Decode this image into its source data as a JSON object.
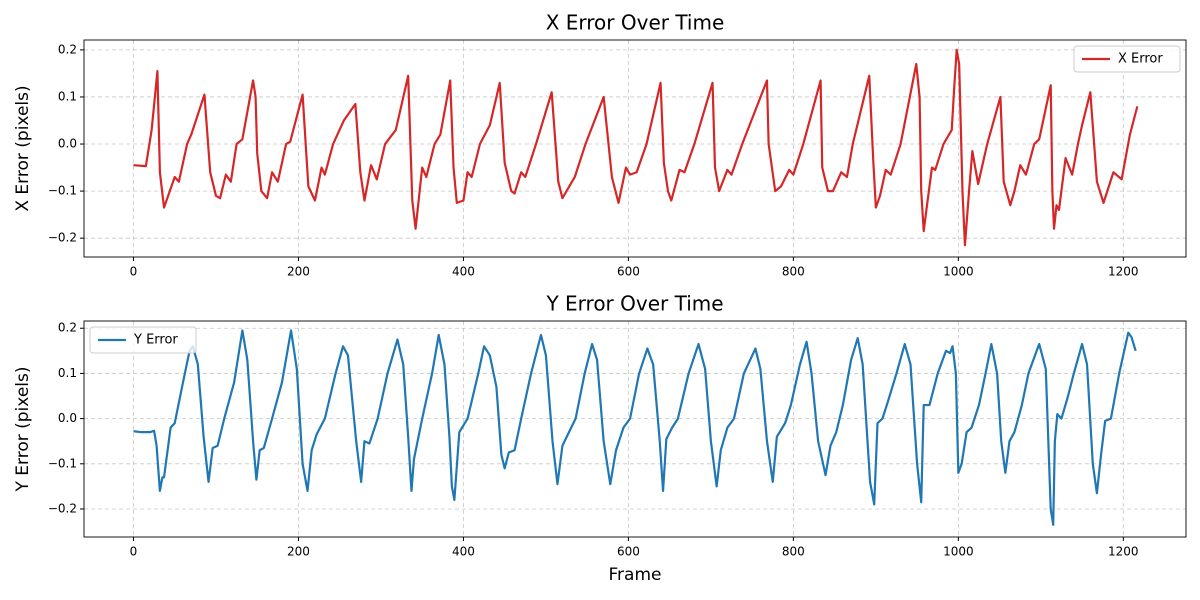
{
  "chart_data": [
    {
      "type": "line",
      "title": "X Error Over Time",
      "y_label": "X Error (pixels)",
      "x": [
        0,
        15,
        22,
        29,
        32,
        37,
        50,
        55,
        65,
        70,
        86,
        93,
        100,
        105,
        112,
        118,
        125,
        132,
        145,
        148,
        150,
        155,
        162,
        168,
        175,
        185,
        190,
        205,
        212,
        220,
        228,
        232,
        242,
        255,
        269,
        275,
        280,
        288,
        295,
        305,
        318,
        333,
        338,
        342,
        350,
        355,
        365,
        372,
        384,
        388,
        392,
        400,
        405,
        410,
        420,
        432,
        444,
        450,
        458,
        462,
        470,
        475,
        488,
        507,
        515,
        520,
        525,
        535,
        548,
        570,
        580,
        588,
        597,
        602,
        610,
        622,
        639,
        643,
        648,
        652,
        662,
        668,
        680,
        702,
        705,
        710,
        720,
        725,
        738,
        768,
        770,
        778,
        785,
        795,
        800,
        812,
        833,
        835,
        842,
        848,
        858,
        865,
        872,
        892,
        897,
        900,
        905,
        912,
        918,
        930,
        949,
        953,
        955,
        958,
        962,
        968,
        972,
        982,
        992,
        995,
        998,
        1001,
        1005,
        1008,
        1013,
        1017,
        1024,
        1035,
        1051,
        1055,
        1063,
        1068,
        1075,
        1082,
        1092,
        1098,
        1112,
        1114,
        1116,
        1119,
        1122,
        1130,
        1138,
        1145,
        1150,
        1160,
        1168,
        1176,
        1188,
        1198,
        1208,
        1217
      ],
      "series": [
        {
          "name": "X Error",
          "color": "#d62728",
          "values": [
            -0.045,
            -0.047,
            0.03,
            0.155,
            -0.06,
            -0.135,
            -0.07,
            -0.08,
            0.0,
            0.02,
            0.105,
            -0.06,
            -0.11,
            -0.115,
            -0.065,
            -0.08,
            0.0,
            0.01,
            0.135,
            0.1,
            -0.02,
            -0.1,
            -0.115,
            -0.06,
            -0.08,
            0.0,
            0.005,
            0.105,
            -0.09,
            -0.12,
            -0.05,
            -0.065,
            0.0,
            0.05,
            0.085,
            -0.06,
            -0.12,
            -0.045,
            -0.075,
            0.0,
            0.03,
            0.145,
            -0.12,
            -0.18,
            -0.05,
            -0.07,
            0.0,
            0.02,
            0.135,
            -0.05,
            -0.125,
            -0.12,
            -0.06,
            -0.07,
            0.0,
            0.04,
            0.13,
            -0.04,
            -0.1,
            -0.105,
            -0.06,
            -0.07,
            0.0,
            0.11,
            -0.08,
            -0.115,
            -0.1,
            -0.07,
            0.0,
            0.1,
            -0.07,
            -0.125,
            -0.05,
            -0.065,
            -0.06,
            0.0,
            0.13,
            -0.04,
            -0.1,
            -0.12,
            -0.055,
            -0.06,
            0.0,
            0.13,
            -0.05,
            -0.1,
            -0.055,
            -0.065,
            0.0,
            0.135,
            0.0,
            -0.1,
            -0.09,
            -0.055,
            -0.065,
            0.0,
            0.135,
            -0.05,
            -0.1,
            -0.1,
            -0.06,
            -0.07,
            0.0,
            0.145,
            -0.04,
            -0.135,
            -0.11,
            -0.055,
            -0.065,
            0.0,
            0.17,
            0.1,
            -0.1,
            -0.185,
            -0.13,
            -0.05,
            -0.055,
            0.0,
            0.03,
            0.12,
            0.2,
            0.17,
            -0.1,
            -0.215,
            -0.1,
            -0.015,
            -0.085,
            0.0,
            0.1,
            -0.08,
            -0.13,
            -0.1,
            -0.045,
            -0.065,
            0.0,
            0.01,
            0.125,
            -0.1,
            -0.18,
            -0.13,
            -0.14,
            -0.03,
            -0.065,
            0.0,
            0.04,
            0.11,
            -0.08,
            -0.125,
            -0.06,
            -0.075,
            0.02,
            0.08
          ]
        }
      ],
      "xlim": [
        -60,
        1276
      ],
      "ylim": [
        -0.24,
        0.221
      ],
      "xticks": [
        0,
        200,
        400,
        600,
        800,
        1000,
        1200
      ],
      "yticks": [
        {
          "value": -0.2,
          "label": "−0.2"
        },
        {
          "value": -0.1,
          "label": "−0.1"
        },
        {
          "value": 0,
          "label": "0.0"
        },
        0.1,
        0.2
      ],
      "grid": true,
      "legend": "upper right"
    },
    {
      "type": "line",
      "title": "Y Error Over Time",
      "y_label": "Y Error (pixels)",
      "x_label": "Frame",
      "x": [
        0,
        10,
        20,
        25,
        28,
        32,
        35,
        37,
        45,
        50,
        60,
        68,
        72,
        78,
        85,
        91,
        96,
        102,
        110,
        122,
        132,
        138,
        145,
        149,
        153,
        158,
        168,
        180,
        191,
        198,
        205,
        211,
        216,
        222,
        232,
        245,
        254,
        260,
        270,
        276,
        280,
        286,
        296,
        308,
        320,
        327,
        333,
        337,
        340,
        350,
        362,
        370,
        377,
        383,
        386,
        389,
        395,
        405,
        418,
        425,
        432,
        440,
        446,
        450,
        455,
        462,
        470,
        482,
        494,
        500,
        508,
        514,
        520,
        528,
        536,
        547,
        556,
        562,
        570,
        578,
        585,
        594,
        602,
        613,
        623,
        630,
        638,
        642,
        646,
        653,
        660,
        673,
        685,
        693,
        700,
        707,
        712,
        720,
        728,
        740,
        754,
        760,
        768,
        775,
        780,
        790,
        797,
        808,
        816,
        822,
        830,
        839,
        845,
        852,
        860,
        870,
        878,
        884,
        893,
        898,
        902,
        908,
        915,
        925,
        935,
        942,
        950,
        955,
        958,
        965,
        975,
        985,
        990,
        993,
        997,
        1000,
        1004,
        1010,
        1016,
        1025,
        1033,
        1040,
        1047,
        1052,
        1057,
        1062,
        1068,
        1077,
        1085,
        1098,
        1106,
        1112,
        1115,
        1117,
        1120,
        1125,
        1133,
        1140,
        1150,
        1156,
        1163,
        1168,
        1173,
        1178,
        1185,
        1195,
        1206,
        1210,
        1215
      ],
      "series": [
        {
          "name": "Y Error",
          "color": "#1f77b4",
          "values": [
            -0.028,
            -0.03,
            -0.03,
            -0.027,
            -0.06,
            -0.16,
            -0.13,
            -0.13,
            -0.02,
            -0.01,
            0.08,
            0.15,
            0.16,
            0.12,
            -0.04,
            -0.14,
            -0.065,
            -0.06,
            0.0,
            0.08,
            0.195,
            0.13,
            -0.05,
            -0.135,
            -0.07,
            -0.065,
            0.0,
            0.08,
            0.195,
            0.11,
            -0.1,
            -0.16,
            -0.07,
            -0.035,
            0.0,
            0.1,
            0.16,
            0.14,
            -0.05,
            -0.14,
            -0.05,
            -0.055,
            0.0,
            0.1,
            0.175,
            0.12,
            -0.04,
            -0.16,
            -0.09,
            0.0,
            0.1,
            0.185,
            0.12,
            -0.04,
            -0.15,
            -0.18,
            -0.03,
            0.0,
            0.1,
            0.16,
            0.14,
            0.07,
            -0.08,
            -0.11,
            -0.075,
            -0.07,
            0.0,
            0.1,
            0.185,
            0.14,
            -0.05,
            -0.145,
            -0.06,
            -0.03,
            0.0,
            0.1,
            0.165,
            0.13,
            -0.05,
            -0.145,
            -0.07,
            -0.02,
            0.0,
            0.1,
            0.155,
            0.12,
            -0.05,
            -0.16,
            -0.045,
            -0.02,
            0.0,
            0.1,
            0.165,
            0.11,
            -0.05,
            -0.15,
            -0.07,
            -0.02,
            0.0,
            0.1,
            0.155,
            0.11,
            -0.05,
            -0.14,
            -0.04,
            -0.01,
            0.03,
            0.12,
            0.17,
            0.1,
            -0.05,
            -0.125,
            -0.06,
            -0.03,
            0.03,
            0.13,
            0.178,
            0.12,
            -0.14,
            -0.19,
            -0.01,
            0.0,
            0.04,
            0.1,
            0.165,
            0.12,
            -0.1,
            -0.185,
            0.03,
            0.03,
            0.1,
            0.15,
            0.145,
            0.16,
            0.1,
            -0.12,
            -0.1,
            -0.03,
            -0.02,
            0.03,
            0.1,
            0.165,
            0.1,
            -0.05,
            -0.12,
            -0.05,
            -0.03,
            0.03,
            0.1,
            0.165,
            0.11,
            -0.2,
            -0.235,
            -0.05,
            0.01,
            0.0,
            0.05,
            0.1,
            0.165,
            0.12,
            -0.1,
            -0.165,
            -0.08,
            -0.005,
            0.0,
            0.1,
            0.19,
            0.18,
            0.15
          ]
        }
      ],
      "xlim": [
        -60,
        1276
      ],
      "ylim": [
        -0.262,
        0.216
      ],
      "xticks": [
        0,
        200,
        400,
        600,
        800,
        1000,
        1200
      ],
      "yticks": [
        {
          "value": -0.2,
          "label": "−0.2"
        },
        {
          "value": -0.1,
          "label": "−0.1"
        },
        {
          "value": 0,
          "label": "0.0"
        },
        0.1,
        0.2
      ],
      "grid": true,
      "legend": "upper left"
    }
  ]
}
